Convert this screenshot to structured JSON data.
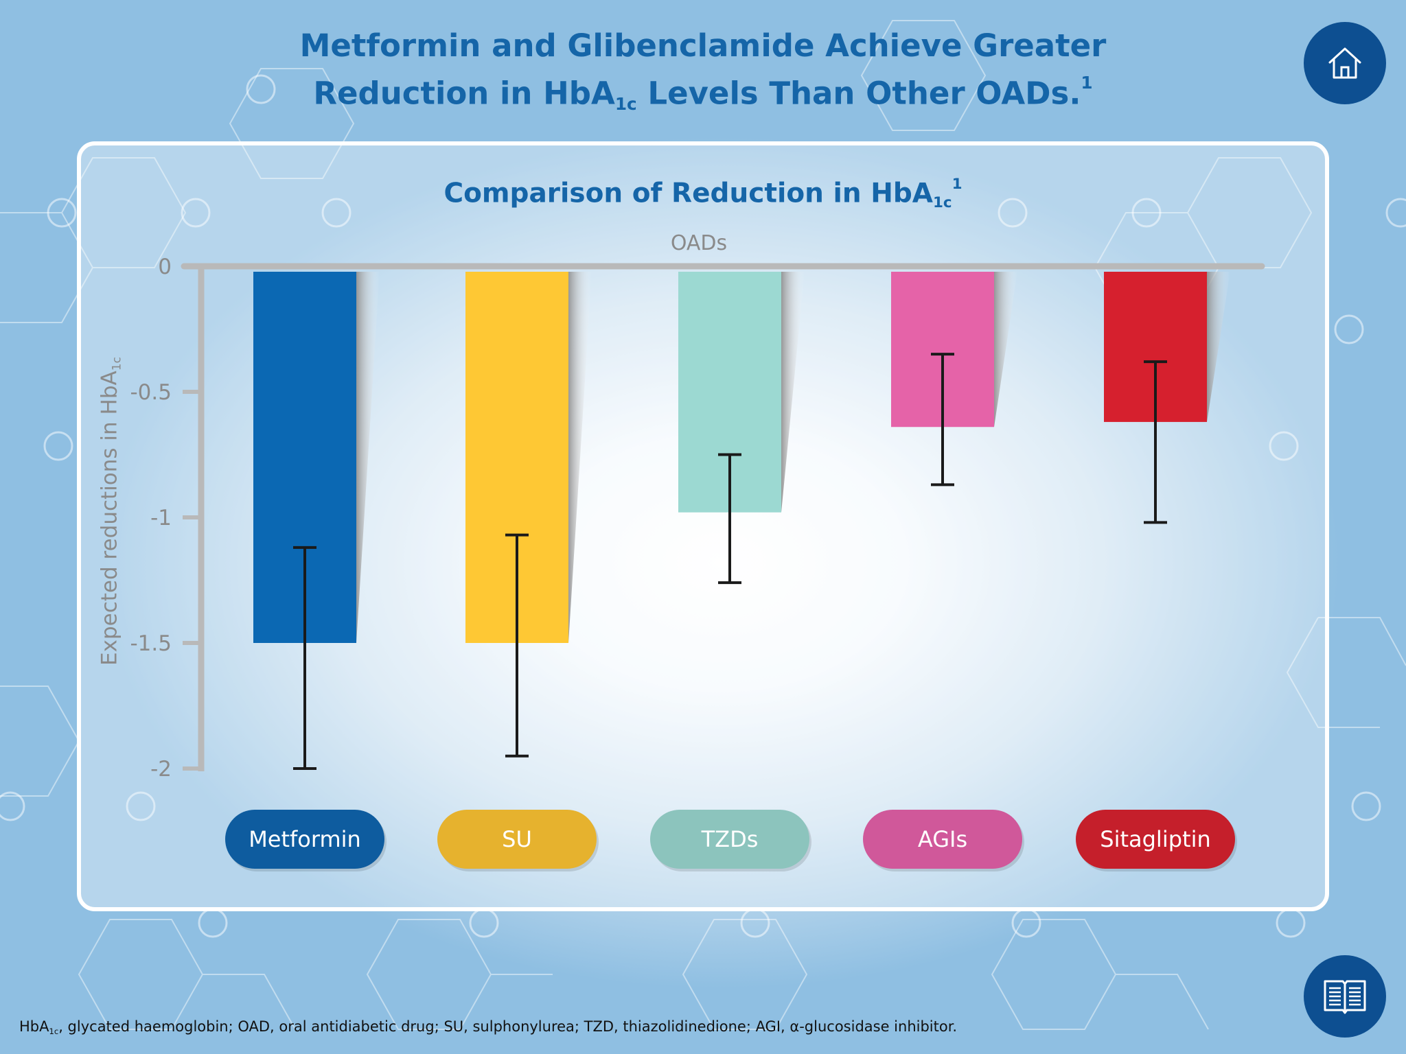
{
  "title": {
    "line1": "Metformin and Glibenclamide Achieve Greater",
    "line2_pre": "Reduction in HbA",
    "line2_sub": "1c",
    "line2_post": " Levels Than Other OADs.",
    "line2_sup": "1"
  },
  "chart_title": {
    "pre": "Comparison of Reduction in HbA",
    "sub": "1c",
    "sup": "1"
  },
  "footnote": {
    "pre": "HbA",
    "sub": "1c",
    "post": ", glycated haemoglobin; OAD, oral antidiabetic drug; SU, sulphonylurea; TZD, thiazolidinedione; AGI, α-glucosidase inhibitor."
  },
  "icons": {
    "home": "home-icon",
    "book": "book-icon"
  },
  "colors": {
    "title": "#1565a8",
    "button_bg": "#0d4f91",
    "axis": "#b9b9b9",
    "error_bar": "#1a1a1a"
  },
  "chart_data": {
    "type": "bar",
    "title": "Comparison of Reduction in HbA1c",
    "xlabel": "OADs",
    "ylabel_pre": "Expected reductions in HbA",
    "ylabel_sub": "1c",
    "ylim": [
      -2,
      0
    ],
    "yticks": [
      "0",
      "-0.5",
      "-1",
      "-1.5",
      "-2"
    ],
    "ytick_values": [
      0,
      -0.5,
      -1,
      -1.5,
      -2
    ],
    "categories": [
      "Metformin",
      "SU",
      "TZDs",
      "AGIs",
      "Sitagliptin"
    ],
    "values": [
      -1.5,
      -1.5,
      -0.98,
      -0.64,
      -0.62
    ],
    "error_low": [
      -2.0,
      -1.95,
      -1.26,
      -0.87,
      -1.02
    ],
    "error_high": [
      -1.12,
      -1.07,
      -0.75,
      -0.35,
      -0.38
    ],
    "bar_colors": [
      "#0b68b3",
      "#fec834",
      "#9cd9d2",
      "#e563a8",
      "#d6202e"
    ],
    "label_colors": [
      "#0e5c9f",
      "#e6b22e",
      "#8cc4bd",
      "#d0589a",
      "#c51f2b"
    ],
    "grid": false
  }
}
